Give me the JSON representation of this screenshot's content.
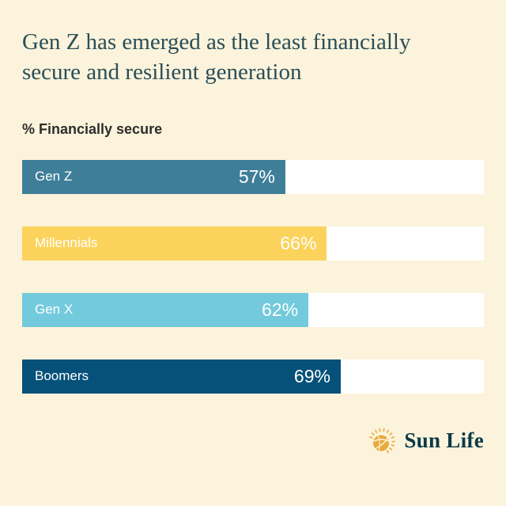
{
  "page": {
    "background_color": "#FBF3DB",
    "title": "Gen Z has emerged as the least financially secure and resilient generation",
    "title_color": "#2A4E58"
  },
  "chart_data": {
    "type": "bar",
    "orientation": "horizontal",
    "title": "% Financially secure",
    "categories": [
      "Gen Z",
      "Millennials",
      "Gen X",
      "Boomers"
    ],
    "values": [
      57,
      66,
      62,
      69
    ],
    "value_labels": [
      "57%",
      "66%",
      "62%",
      "69%"
    ],
    "xlim": [
      0,
      100
    ],
    "grid": false,
    "legend": false,
    "track_color": "#FFFFFF",
    "text_color_on_bars": "#FFFFFF",
    "rows": [
      {
        "label": "Gen Z",
        "value": 57,
        "display": "57%",
        "color": "#3F7E99"
      },
      {
        "label": "Millennials",
        "value": 66,
        "display": "66%",
        "color": "#FBD35C"
      },
      {
        "label": "Gen X",
        "value": 62,
        "display": "62%",
        "color": "#73CADD"
      },
      {
        "label": "Boomers",
        "value": 69,
        "display": "69%",
        "color": "#055179"
      }
    ]
  },
  "footer": {
    "brand": "Sun Life",
    "brand_color": "#0B3948",
    "sun_icon": "sun-life-sun-globe",
    "sun_icon_color": "#E9A93B"
  }
}
